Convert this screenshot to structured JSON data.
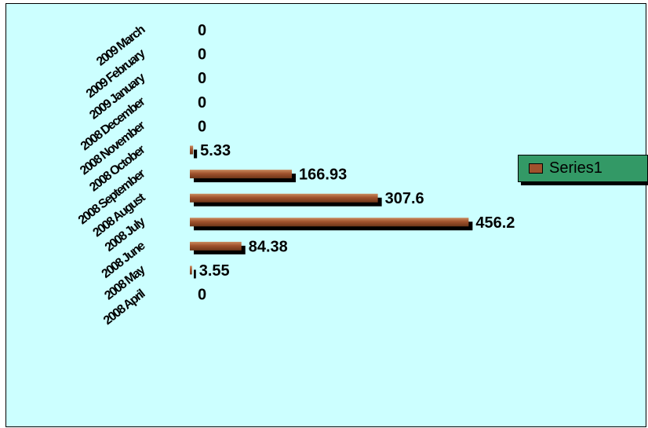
{
  "chart_data": {
    "type": "bar",
    "orientation": "horizontal",
    "categories": [
      "2008 April",
      "2008 May",
      "2008 June",
      "2008 July",
      "2008 August",
      "2008 September",
      "2008 October",
      "2008 November",
      "2008 December",
      "2009 January",
      "2009 February",
      "2009 March"
    ],
    "series": [
      {
        "name": "Series1",
        "values": [
          0,
          3.55,
          84.38,
          456.2,
          307.6,
          166.93,
          5.33,
          0,
          0,
          0,
          0,
          0
        ],
        "labels": [
          "0",
          "3.55",
          "84.38",
          "456.2",
          "307.6",
          "166.93",
          "5.33",
          "0",
          "0",
          "0",
          "0",
          "0"
        ],
        "color": "#a0522d"
      }
    ],
    "xlim": [
      0,
      500
    ],
    "grid": false,
    "legend": "right",
    "colors": {
      "background": "#ccffff",
      "legend_background": "#339966",
      "bar": "#a0522d"
    }
  }
}
